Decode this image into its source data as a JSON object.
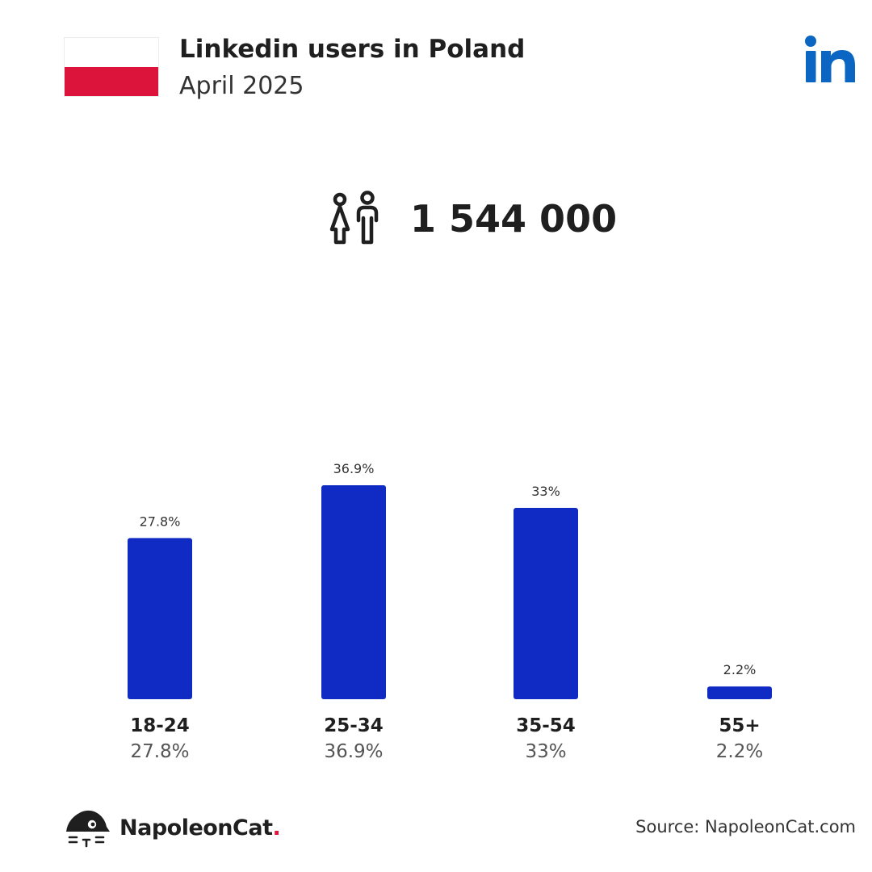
{
  "header": {
    "title": "Linkedin users in Poland",
    "subtitle": "April 2025",
    "flag_colors": [
      "#ffffff",
      "#dc143c"
    ],
    "logo_icon": "linkedin-icon",
    "logo_color": "#0a66c2"
  },
  "summary": {
    "icon": "users-icon",
    "total": "1 544 000"
  },
  "chart_data": {
    "type": "bar",
    "categories": [
      "18-24",
      "25-34",
      "35-54",
      "55+"
    ],
    "values": [
      27.8,
      36.9,
      33,
      2.2
    ],
    "value_labels": [
      "27.8%",
      "36.9%",
      "33%",
      "2.2%"
    ],
    "unit": "%",
    "bar_color": "#0f2bc3",
    "grid": false,
    "legend": "none"
  },
  "footer": {
    "brand": "NapoleonCat",
    "brand_dot": ".",
    "source": "Source: NapoleonCat.com"
  }
}
